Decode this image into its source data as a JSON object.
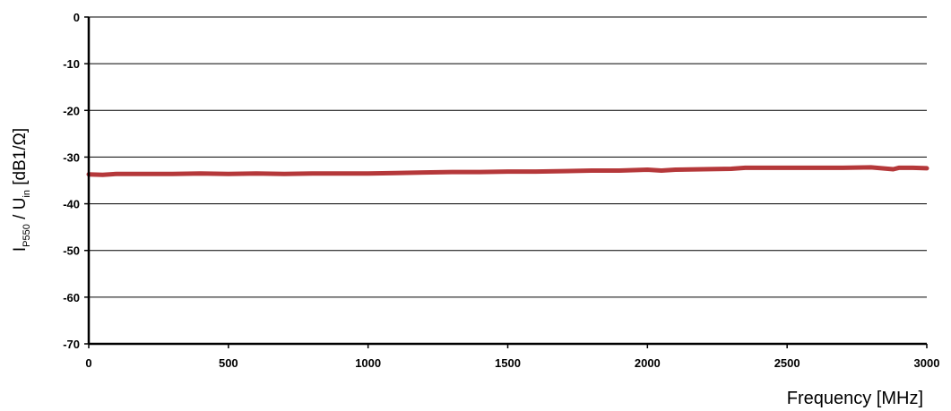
{
  "chart_data": {
    "type": "line",
    "title": "",
    "xlabel": "Frequency [MHz]",
    "ylabel": {
      "p1": "I",
      "sub1": "P550",
      "p2": " / U",
      "sub2": "in",
      "p3": " [dB1/Ω]"
    },
    "xlim": [
      0,
      3000
    ],
    "ylim": [
      -70,
      0
    ],
    "x_ticks": [
      "0",
      "500",
      "1000",
      "1500",
      "2000",
      "2500",
      "3000"
    ],
    "y_ticks": [
      "0",
      "-10",
      "-20",
      "-30",
      "-40",
      "-50",
      "-60",
      "-70"
    ],
    "grid": "horizontal",
    "legend": "none",
    "series": [
      {
        "color": "#b5383a",
        "x": [
          0,
          50,
          100,
          200,
          300,
          400,
          500,
          600,
          700,
          800,
          900,
          1000,
          1100,
          1200,
          1300,
          1400,
          1500,
          1600,
          1700,
          1800,
          1900,
          2000,
          2050,
          2100,
          2200,
          2300,
          2350,
          2400,
          2500,
          2600,
          2700,
          2800,
          2880,
          2900,
          2950,
          3000
        ],
        "y": [
          -33.7,
          -33.8,
          -33.6,
          -33.6,
          -33.6,
          -33.5,
          -33.6,
          -33.5,
          -33.6,
          -33.5,
          -33.5,
          -33.5,
          -33.4,
          -33.3,
          -33.2,
          -33.2,
          -33.1,
          -33.1,
          -33.0,
          -32.9,
          -32.9,
          -32.7,
          -32.9,
          -32.7,
          -32.6,
          -32.5,
          -32.3,
          -32.3,
          -32.3,
          -32.3,
          -32.3,
          -32.2,
          -32.6,
          -32.3,
          -32.3,
          -32.4
        ]
      }
    ]
  }
}
